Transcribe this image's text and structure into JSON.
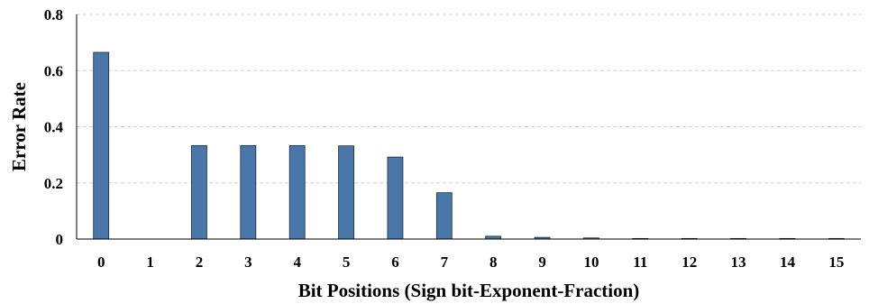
{
  "chart_data": {
    "type": "bar",
    "xlabel": "Bit Positions (Sign bit-Exponent-Fraction)",
    "ylabel": "Error Rate",
    "categories": [
      "0",
      "1",
      "2",
      "3",
      "4",
      "5",
      "6",
      "7",
      "8",
      "9",
      "10",
      "11",
      "12",
      "13",
      "14",
      "15"
    ],
    "values": [
      0.665,
      0.0,
      0.333,
      0.333,
      0.333,
      0.332,
      0.292,
      0.165,
      0.01,
      0.006,
      0.004,
      0.002,
      0.002,
      0.002,
      0.002,
      0.002
    ],
    "ylim": [
      0,
      0.8
    ],
    "yticks": [
      {
        "value": 0,
        "label": "0"
      },
      {
        "value": 0.2,
        "label": "0.2"
      },
      {
        "value": 0.4,
        "label": "0.4"
      },
      {
        "value": 0.6,
        "label": "0.6"
      },
      {
        "value": 0.8,
        "label": "0.8"
      }
    ],
    "grid": "horizontal-dashed",
    "legend": "none",
    "colors": {
      "bar": "#4a77aa",
      "bar_edge": "#1a2a40"
    }
  }
}
